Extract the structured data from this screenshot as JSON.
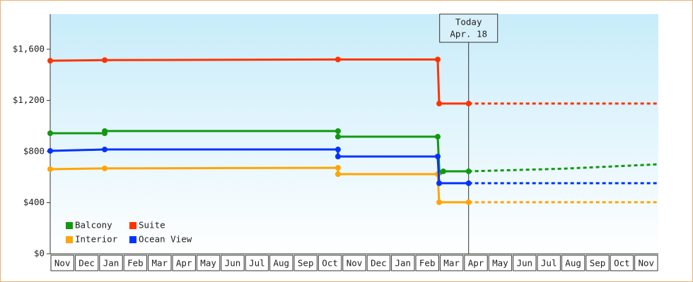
{
  "chart_data": {
    "type": "line",
    "ylim": [
      0,
      1875
    ],
    "yticks": [
      {
        "value": 0,
        "label": "$0"
      },
      {
        "value": 400,
        "label": "$400"
      },
      {
        "value": 800,
        "label": "$800"
      },
      {
        "value": 1200,
        "label": "$1,200"
      },
      {
        "value": 1600,
        "label": "$1,600"
      }
    ],
    "xlim": [
      0,
      25
    ],
    "xticks": [
      {
        "value": 0.5,
        "label": "Nov"
      },
      {
        "value": 1.5,
        "label": "Dec"
      },
      {
        "value": 2.5,
        "label": "Jan"
      },
      {
        "value": 3.5,
        "label": "Feb"
      },
      {
        "value": 4.5,
        "label": "Mar"
      },
      {
        "value": 5.5,
        "label": "Apr"
      },
      {
        "value": 6.5,
        "label": "May"
      },
      {
        "value": 7.5,
        "label": "Jun"
      },
      {
        "value": 8.5,
        "label": "Jul"
      },
      {
        "value": 9.5,
        "label": "Aug"
      },
      {
        "value": 10.5,
        "label": "Sep"
      },
      {
        "value": 11.5,
        "label": "Oct"
      },
      {
        "value": 12.5,
        "label": "Nov"
      },
      {
        "value": 13.5,
        "label": "Dec"
      },
      {
        "value": 14.5,
        "label": "Jan"
      },
      {
        "value": 15.5,
        "label": "Feb"
      },
      {
        "value": 16.5,
        "label": "Mar"
      },
      {
        "value": 17.5,
        "label": "Apr"
      },
      {
        "value": 18.5,
        "label": "May"
      },
      {
        "value": 19.5,
        "label": "Jun"
      },
      {
        "value": 20.5,
        "label": "Jul"
      },
      {
        "value": 21.5,
        "label": "Aug"
      },
      {
        "value": 22.5,
        "label": "Sep"
      },
      {
        "value": 23.5,
        "label": "Oct"
      },
      {
        "value": 24.5,
        "label": "Nov"
      }
    ],
    "today": {
      "x": 17.2,
      "label": [
        "Today",
        "Apr. 18"
      ]
    },
    "legend": "lower-left",
    "series": [
      {
        "name": "Balcony",
        "color": "#119911",
        "x": [
          0,
          2.24,
          2.24,
          11.83,
          11.83,
          15.93,
          16.0,
          16.16,
          17.2
        ],
        "values": [
          943,
          943,
          960,
          960,
          916,
          916,
          634,
          645,
          645
        ],
        "forecast": {
          "x": [
            17.2,
            21,
            25
          ],
          "values": [
            645,
            665,
            700
          ]
        }
      },
      {
        "name": "Suite",
        "color": "#ff3300",
        "x": [
          0,
          2.24,
          11.83,
          15.93,
          15.99,
          17.2
        ],
        "values": [
          1510,
          1515,
          1520,
          1520,
          1175,
          1175
        ],
        "forecast": {
          "x": [
            17.2,
            25
          ],
          "values": [
            1175,
            1175
          ]
        }
      },
      {
        "name": "Interior",
        "color": "#ffa500",
        "x": [
          0,
          2.24,
          11.83,
          11.83,
          15.93,
          15.99,
          17.2
        ],
        "values": [
          662,
          668,
          673,
          623,
          623,
          403,
          403
        ],
        "forecast": {
          "x": [
            17.2,
            25
          ],
          "values": [
            403,
            403
          ]
        }
      },
      {
        "name": "Ocean View",
        "color": "#0033ff",
        "x": [
          0,
          2.24,
          11.83,
          11.83,
          15.93,
          15.99,
          17.2
        ],
        "values": [
          805,
          816,
          816,
          761,
          761,
          552,
          552
        ],
        "forecast": {
          "x": [
            17.2,
            25
          ],
          "values": [
            552,
            552
          ]
        }
      }
    ]
  }
}
